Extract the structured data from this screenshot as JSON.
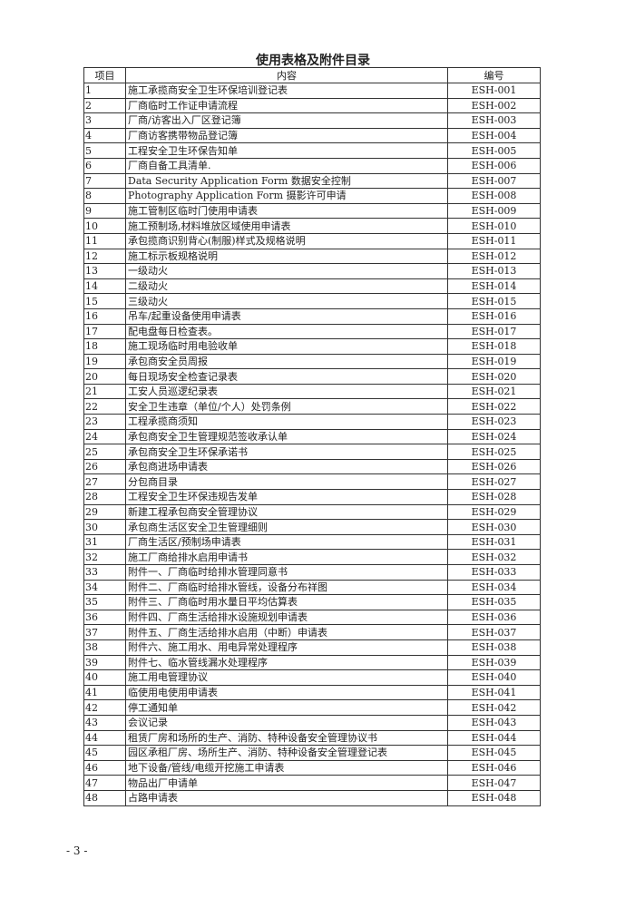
{
  "title": "使用表格及附件目录",
  "headers": [
    "项目",
    "内容",
    "编号"
  ],
  "rows": [
    [
      "1",
      "施工承揽商安全卫生环保培训登记表",
      "ESH-001"
    ],
    [
      "2",
      "厂商临时工作证申请流程",
      "ESH-002"
    ],
    [
      "3",
      "厂商/访客出入厂区登记簿",
      "ESH-003"
    ],
    [
      "4",
      "厂商访客携带物品登记簿",
      "ESH-004"
    ],
    [
      "5",
      "工程安全卫生环保告知单",
      "ESH-005"
    ],
    [
      "6",
      "厂商自备工具清单.",
      "ESH-006"
    ],
    [
      "7",
      "Data Security Application Form 数据安全控制",
      "ESH-007"
    ],
    [
      "8",
      "Photography Application Form 摄影许可申请",
      "ESH-008"
    ],
    [
      "9",
      "施工管制区临时门使用申请表",
      "ESH-009"
    ],
    [
      "10",
      "施工预制场,材料堆放区域使用申请表",
      "ESH-010"
    ],
    [
      "11",
      "承包揽商识别背心(制服)样式及规格说明",
      "ESH-011"
    ],
    [
      "12",
      "施工标示板规格说明",
      "ESH-012"
    ],
    [
      "13",
      "一级动火",
      "ESH-013"
    ],
    [
      "14",
      "二级动火",
      "ESH-014"
    ],
    [
      "15",
      "三级动火",
      "ESH-015"
    ],
    [
      "16",
      "吊车/起重设备使用申请表",
      "ESH-016"
    ],
    [
      "17",
      "配电盘每日检查表。",
      "ESH-017"
    ],
    [
      "18",
      "施工现场临时用电验收单",
      "ESH-018"
    ],
    [
      "19",
      "承包商安全员周报",
      "ESH-019"
    ],
    [
      "20",
      "每日现场安全检查记录表",
      "ESH-020"
    ],
    [
      "21",
      "工安人员巡逻纪录表",
      "ESH-021"
    ],
    [
      "22",
      "安全卫生违章（单位/个人）处罚条例",
      "ESH-022"
    ],
    [
      "23",
      "工程承揽商须知",
      "ESH-023"
    ],
    [
      "24",
      "承包商安全卫生管理规范签收承认单",
      "ESH-024"
    ],
    [
      "25",
      "承包商安全卫生环保承诺书",
      "ESH-025"
    ],
    [
      "26",
      "承包商进场申请表",
      "ESH-026"
    ],
    [
      "27",
      "分包商目录",
      "ESH-027"
    ],
    [
      "28",
      "工程安全卫生环保违规告发单",
      "ESH-028"
    ],
    [
      "29",
      "新建工程承包商安全管理协议",
      "ESH-029"
    ],
    [
      "30",
      "承包商生活区安全卫生管理细则",
      "ESH-030"
    ],
    [
      "31",
      "厂商生活区/预制场申请表",
      "ESH-031"
    ],
    [
      "32",
      "施工厂商给排水启用申请书",
      "ESH-032"
    ],
    [
      "33",
      "附件一、厂商临时给排水管理同意书",
      "ESH-033"
    ],
    [
      "34",
      "附件二、厂商临时给排水管线，设备分布祥图",
      "ESH-034"
    ],
    [
      "35",
      "附件三、厂商临时用水量日平均估算表",
      "ESH-035"
    ],
    [
      "36",
      "附件四、厂商生活给排水设施规划申请表",
      "ESH-036"
    ],
    [
      "37",
      "附件五、厂商生活给排水启用（中断）申请表",
      "ESH-037"
    ],
    [
      "38",
      "附件六、施工用水、用电异常处理程序",
      "ESH-038"
    ],
    [
      "39",
      "附件七、临水管线漏水处理程序",
      "ESH-039"
    ],
    [
      "40",
      "施工用电管理协议",
      "ESH-040"
    ],
    [
      "41",
      "临使用电使用申请表",
      "ESH-041"
    ],
    [
      "42",
      "停工通知单",
      "ESH-042"
    ],
    [
      "43",
      "会议记录",
      "ESH-043"
    ],
    [
      "44",
      "租赁厂房和场所的生产、消防、特种设备安全管理协议书",
      "ESH-044"
    ],
    [
      "45",
      "园区承租厂房、场所生产、消防、特种设备安全管理登记表",
      "ESH-045"
    ],
    [
      "46",
      "地下设备/管线/电缆开挖施工申请表",
      "ESH-046"
    ],
    [
      "47",
      "物品出厂申请单",
      "ESH-047"
    ],
    [
      "48",
      "占路申请表",
      "ESH-048"
    ]
  ],
  "page_number": "- 3 -"
}
